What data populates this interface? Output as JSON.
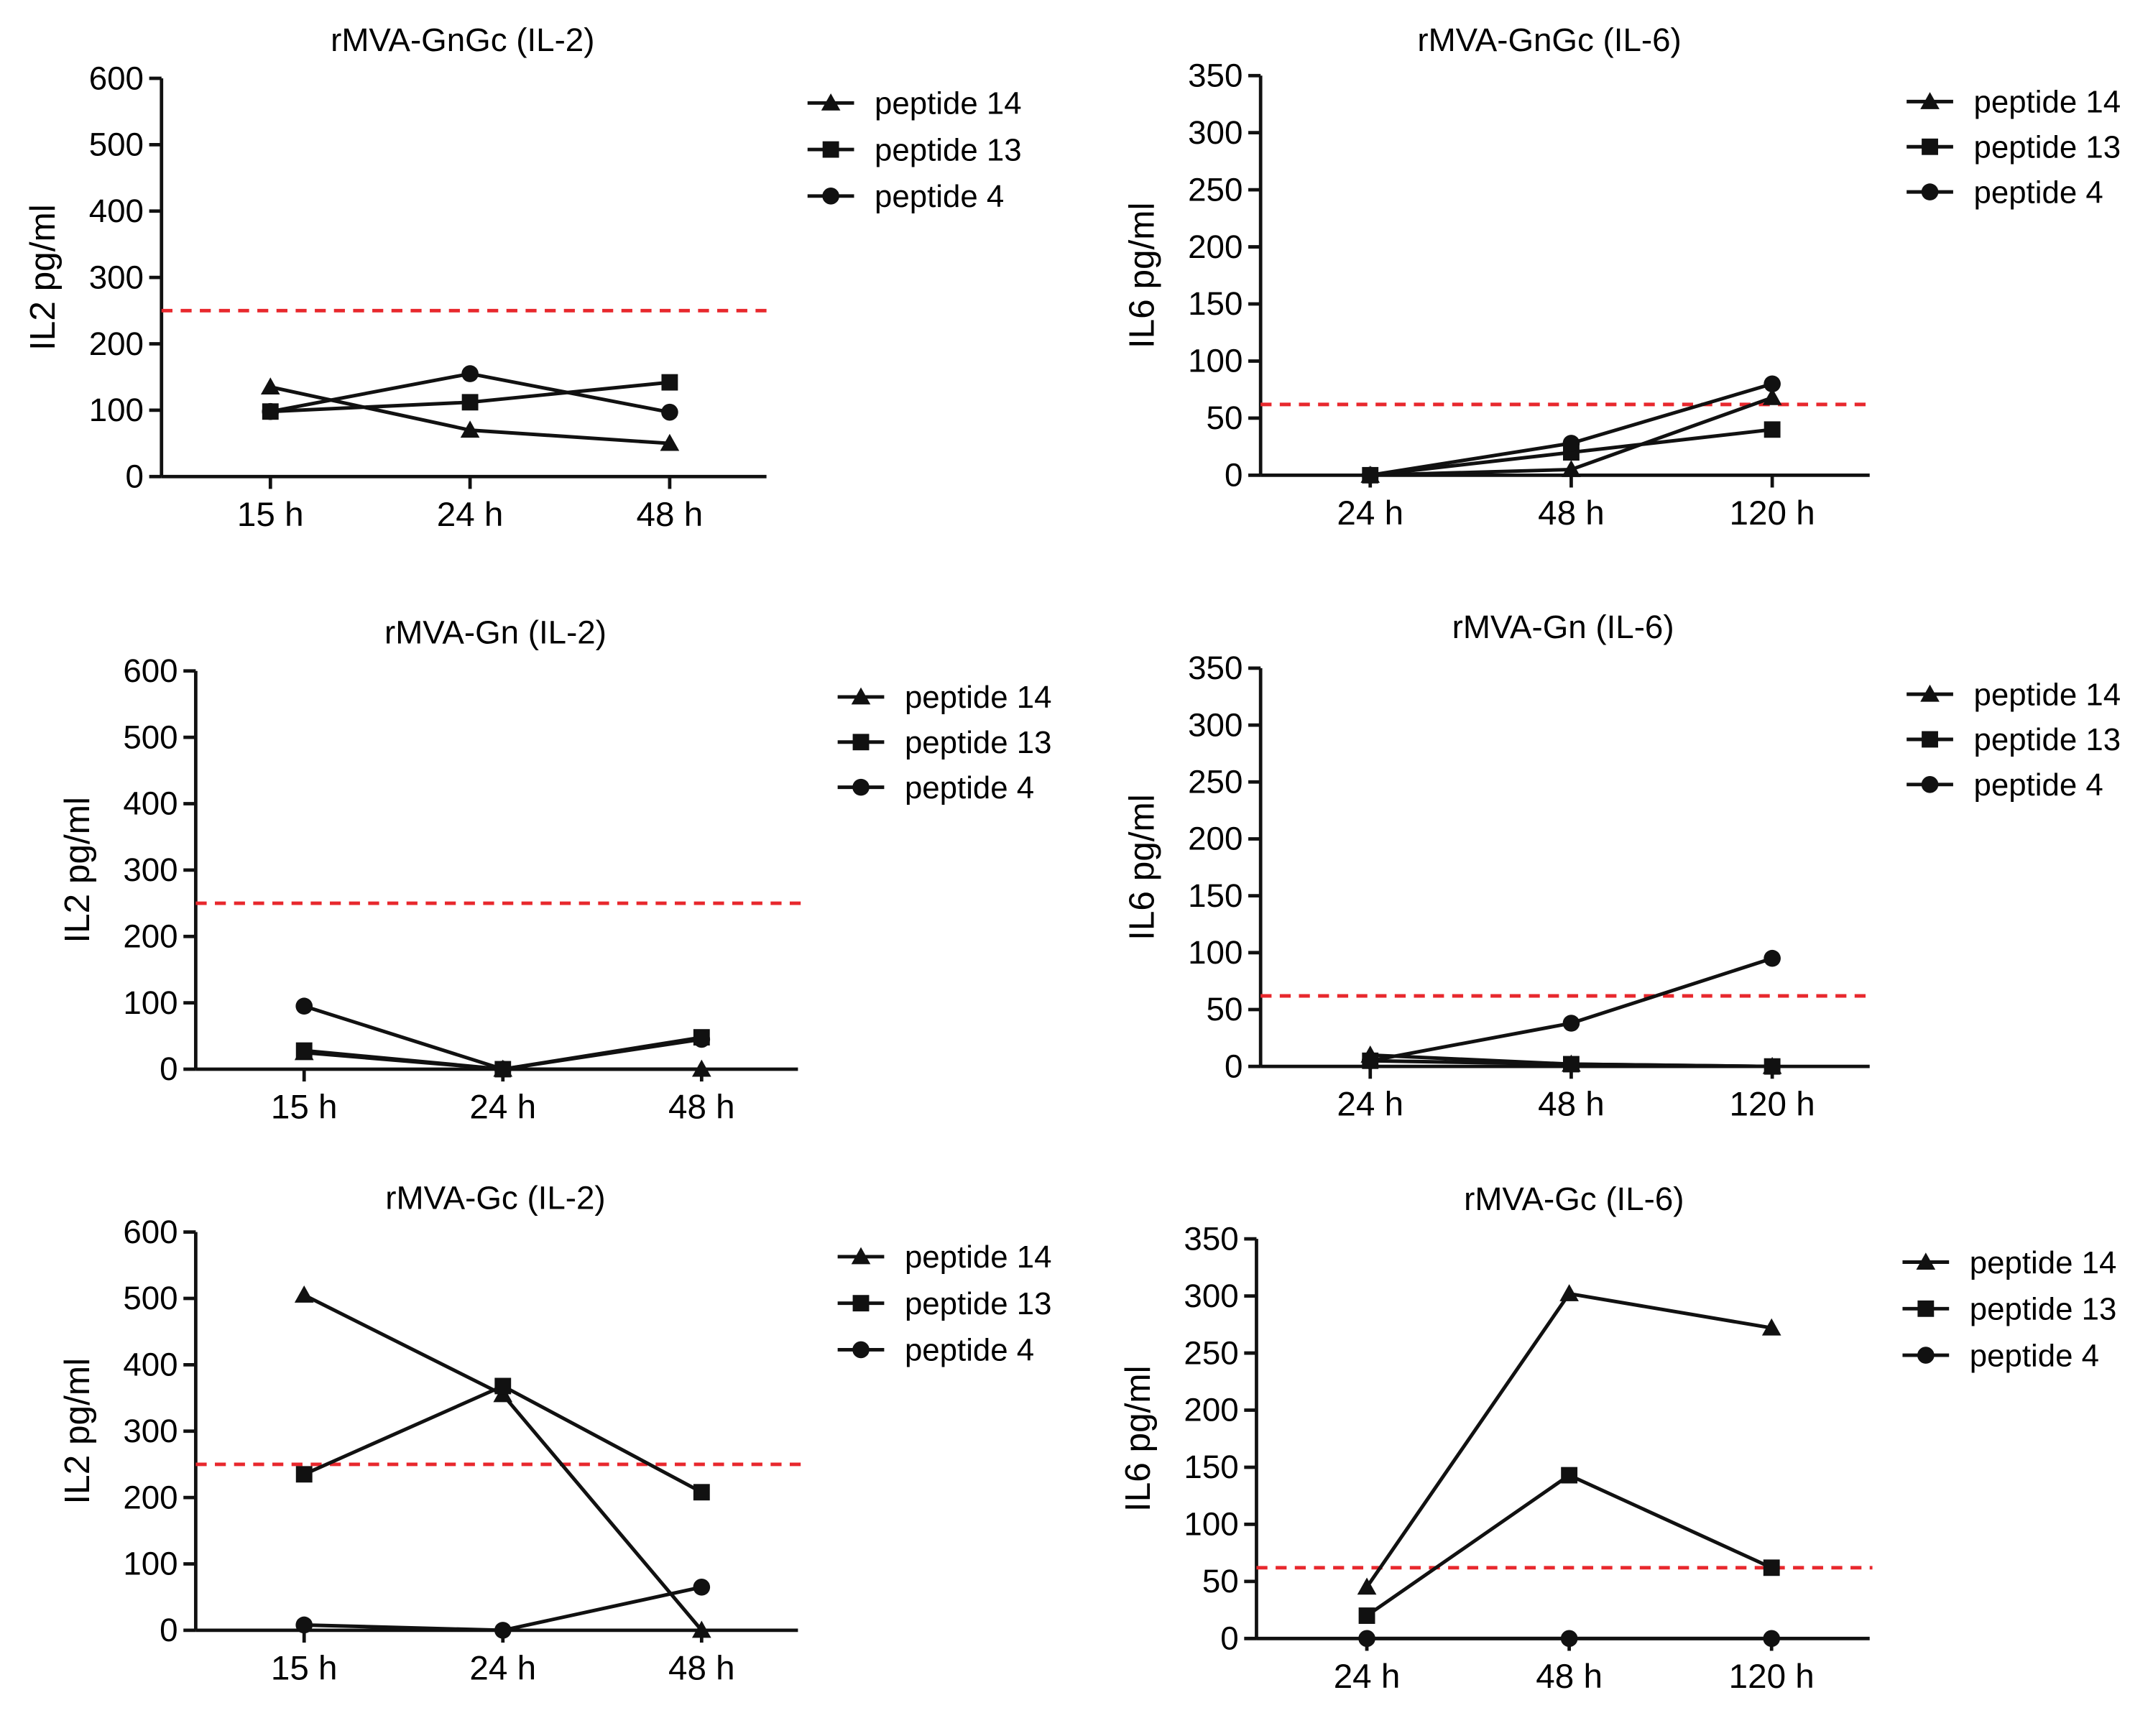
{
  "colors": {
    "line": "#111111",
    "threshold": "#e8282d",
    "background": "#ffffff"
  },
  "chart_data": [
    {
      "type": "line",
      "title": "rMVA-GnGc (IL-2)",
      "xlabel": "",
      "ylabel": "IL2 pg/ml",
      "categories": [
        "15 h",
        "24 h",
        "48 h"
      ],
      "ylim": [
        0,
        600
      ],
      "yticks": [
        0,
        100,
        200,
        300,
        400,
        500,
        600
      ],
      "threshold": 250,
      "series": [
        {
          "name": "peptide 14",
          "marker": "triangle",
          "values": [
            135,
            70,
            50
          ]
        },
        {
          "name": "peptide 13",
          "marker": "square",
          "values": [
            98,
            112,
            142
          ]
        },
        {
          "name": "peptide 4",
          "marker": "circle",
          "values": [
            98,
            155,
            97
          ]
        }
      ]
    },
    {
      "type": "line",
      "title": "rMVA-GnGc (IL-6)",
      "xlabel": "",
      "ylabel": "IL6 pg/ml",
      "categories": [
        "24 h",
        "48 h",
        "120 h"
      ],
      "ylim": [
        0,
        350
      ],
      "yticks": [
        0,
        50,
        100,
        150,
        200,
        250,
        300,
        350
      ],
      "threshold": 62,
      "series": [
        {
          "name": "peptide 14",
          "marker": "triangle",
          "values": [
            0,
            5,
            68
          ]
        },
        {
          "name": "peptide 13",
          "marker": "square",
          "values": [
            0,
            20,
            40
          ]
        },
        {
          "name": "peptide 4",
          "marker": "circle",
          "values": [
            0,
            28,
            80
          ]
        }
      ]
    },
    {
      "type": "line",
      "title": "rMVA-Gn (IL-2)",
      "xlabel": "",
      "ylabel": "IL2 pg/ml",
      "categories": [
        "15 h",
        "24 h",
        "48 h"
      ],
      "ylim": [
        0,
        600
      ],
      "yticks": [
        0,
        100,
        200,
        300,
        400,
        500,
        600
      ],
      "threshold": 250,
      "series": [
        {
          "name": "peptide 14",
          "marker": "triangle",
          "values": [
            25,
            0,
            0
          ]
        },
        {
          "name": "peptide 13",
          "marker": "square",
          "values": [
            28,
            0,
            48
          ]
        },
        {
          "name": "peptide 4",
          "marker": "circle",
          "values": [
            95,
            0,
            45
          ]
        }
      ]
    },
    {
      "type": "line",
      "title": "rMVA-Gn (IL-6)",
      "xlabel": "",
      "ylabel": "IL6 pg/ml",
      "categories": [
        "24 h",
        "48 h",
        "120 h"
      ],
      "ylim": [
        0,
        350
      ],
      "yticks": [
        0,
        50,
        100,
        150,
        200,
        250,
        300,
        350
      ],
      "threshold": 62,
      "series": [
        {
          "name": "peptide 14",
          "marker": "triangle",
          "values": [
            10,
            2,
            0
          ]
        },
        {
          "name": "peptide 13",
          "marker": "square",
          "values": [
            5,
            2,
            0
          ]
        },
        {
          "name": "peptide 4",
          "marker": "circle",
          "values": [
            5,
            38,
            95
          ]
        }
      ]
    },
    {
      "type": "line",
      "title": "rMVA-Gc (IL-2)",
      "xlabel": "",
      "ylabel": "IL2 pg/ml",
      "categories": [
        "15 h",
        "24 h",
        "48 h"
      ],
      "ylim": [
        0,
        600
      ],
      "yticks": [
        0,
        100,
        200,
        300,
        400,
        500,
        600
      ],
      "threshold": 250,
      "series": [
        {
          "name": "peptide 14",
          "marker": "triangle",
          "values": [
            505,
            355,
            0
          ]
        },
        {
          "name": "peptide 13",
          "marker": "square",
          "values": [
            235,
            368,
            208
          ]
        },
        {
          "name": "peptide 4",
          "marker": "circle",
          "values": [
            8,
            0,
            65
          ]
        }
      ]
    },
    {
      "type": "line",
      "title": "rMVA-Gc (IL-6)",
      "xlabel": "",
      "ylabel": "IL6 pg/ml",
      "categories": [
        "24 h",
        "48 h",
        "120 h"
      ],
      "ylim": [
        0,
        350
      ],
      "yticks": [
        0,
        50,
        100,
        150,
        200,
        250,
        300,
        350
      ],
      "threshold": 62,
      "series": [
        {
          "name": "peptide 14",
          "marker": "triangle",
          "values": [
            45,
            302,
            272
          ]
        },
        {
          "name": "peptide 13",
          "marker": "square",
          "values": [
            20,
            143,
            62
          ]
        },
        {
          "name": "peptide 4",
          "marker": "circle",
          "values": [
            0,
            0,
            0
          ]
        }
      ]
    }
  ]
}
